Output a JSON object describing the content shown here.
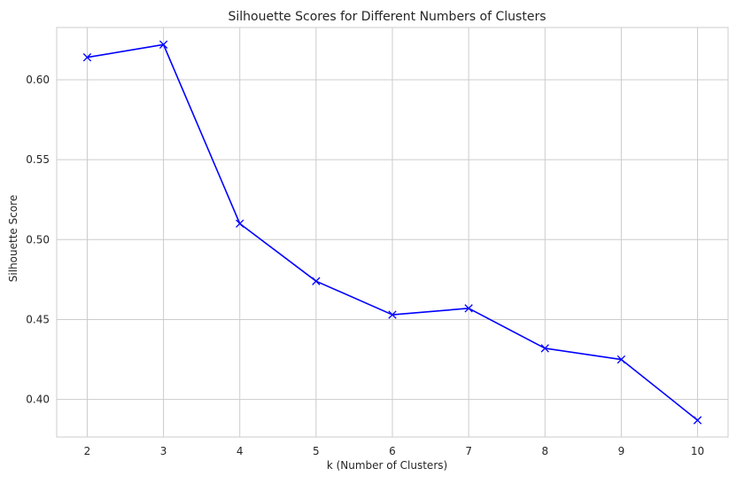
{
  "colors": {
    "line": "#0000ff",
    "grid": "#cccccc",
    "frame": "#cccccc",
    "text": "#262626",
    "background": "#ffffff"
  },
  "chart_data": {
    "type": "line",
    "title": "Silhouette Scores for Different Numbers of Clusters",
    "xlabel": "k (Number of Clusters)",
    "ylabel": "Silhouette Score",
    "x": [
      2,
      3,
      4,
      5,
      6,
      7,
      8,
      9,
      10
    ],
    "series": [
      {
        "marker": "x",
        "values": [
          0.614,
          0.622,
          0.51,
          0.474,
          0.453,
          0.457,
          0.432,
          0.425,
          0.387
        ]
      }
    ],
    "xlim": [
      1.6,
      10.4
    ],
    "ylim": [
      0.3765,
      0.6327
    ],
    "xticks": [
      2,
      3,
      4,
      5,
      6,
      7,
      8,
      9,
      10
    ],
    "yticks": [
      0.4,
      0.45,
      0.5,
      0.55,
      0.6
    ],
    "ytick_labels": [
      "0.40",
      "0.45",
      "0.50",
      "0.55",
      "0.60"
    ],
    "grid": true,
    "style": "whitegrid"
  }
}
